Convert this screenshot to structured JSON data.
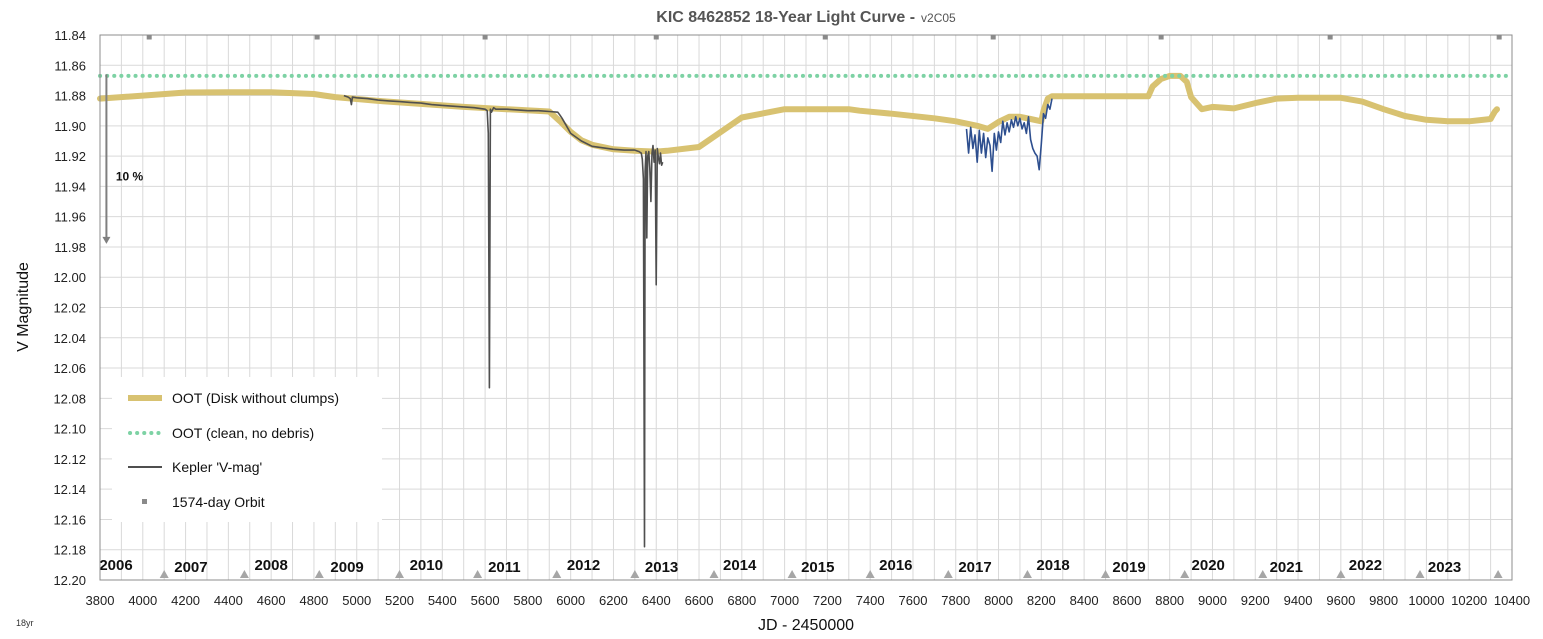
{
  "chart_data": {
    "type": "line",
    "title": "KIC 8462852 18-Year Light Curve -",
    "subtitle": "v2C05",
    "xlabel": "JD - 2450000",
    "ylabel": "V Magnitude",
    "corner_label": "18yr",
    "xlim": [
      3800,
      10400
    ],
    "ylim": [
      11.84,
      12.2
    ],
    "y_inverted": true,
    "grid": true,
    "legend_position": "bottom-left",
    "x_ticks": [
      3800,
      4000,
      4200,
      4400,
      4600,
      4800,
      5000,
      5200,
      5400,
      5600,
      5800,
      6000,
      6200,
      6400,
      6600,
      6800,
      7000,
      7200,
      7400,
      7600,
      7800,
      8000,
      8200,
      8400,
      8600,
      8800,
      9000,
      9200,
      9400,
      9600,
      9800,
      10000,
      10200,
      10400
    ],
    "y_ticks": [
      11.84,
      11.86,
      11.88,
      11.9,
      11.92,
      11.94,
      11.96,
      11.98,
      12.0,
      12.02,
      12.04,
      12.06,
      12.08,
      12.1,
      12.12,
      12.14,
      12.16,
      12.18,
      12.2
    ],
    "year_labels": [
      {
        "label": "2006",
        "x": 3875
      },
      {
        "label": "2007",
        "x": 4225
      },
      {
        "label": "2008",
        "x": 4600
      },
      {
        "label": "2009",
        "x": 4955
      },
      {
        "label": "2010",
        "x": 5325
      },
      {
        "label": "2011",
        "x": 5690
      },
      {
        "label": "2012",
        "x": 6060
      },
      {
        "label": "2013",
        "x": 6425
      },
      {
        "label": "2014",
        "x": 6790
      },
      {
        "label": "2015",
        "x": 7155
      },
      {
        "label": "2016",
        "x": 7520
      },
      {
        "label": "2017",
        "x": 7890
      },
      {
        "label": "2018",
        "x": 8255
      },
      {
        "label": "2019",
        "x": 8610
      },
      {
        "label": "2020",
        "x": 8980
      },
      {
        "label": "2021",
        "x": 9345
      },
      {
        "label": "2022",
        "x": 9715
      },
      {
        "label": "2023",
        "x": 10085
      }
    ],
    "annotation": {
      "text": "10 %",
      "x": 3860,
      "y": 11.936
    },
    "arrow": {
      "x": 3830,
      "y_from": 11.866,
      "y_to": 11.978
    },
    "series": [
      {
        "name": "OOT (Disk without clumps)",
        "color": "#d8c271",
        "style": "thick-line",
        "x": [
          3800,
          4000,
          4200,
          4400,
          4600,
          4800,
          4850,
          4900,
          5100,
          5300,
          5500,
          5700,
          5900,
          5950,
          6000,
          6050,
          6100,
          6200,
          6300,
          6400,
          6450,
          6600,
          6800,
          7000,
          7050,
          7300,
          7350,
          7500,
          7700,
          7800,
          7900,
          7950,
          8000,
          8050,
          8100,
          8150,
          8200,
          8210,
          8230,
          8250,
          8300,
          8400,
          8500,
          8650,
          8700,
          8720,
          8760,
          8800,
          8850,
          8880,
          8900,
          8950,
          9000,
          9100,
          9200,
          9300,
          9400,
          9500,
          9600,
          9700,
          9800,
          9900,
          10000,
          10100,
          10200,
          10300,
          10310,
          10320,
          10330
        ],
        "y": [
          11.882,
          11.88,
          11.878,
          11.8778,
          11.8778,
          11.879,
          11.88,
          11.881,
          11.8835,
          11.8855,
          11.8875,
          11.889,
          11.8905,
          11.897,
          11.904,
          11.9095,
          11.9125,
          11.9155,
          11.9165,
          11.917,
          11.9165,
          11.914,
          11.8945,
          11.889,
          11.889,
          11.889,
          11.89,
          11.892,
          11.895,
          11.897,
          11.9,
          11.902,
          11.8975,
          11.894,
          11.894,
          11.8955,
          11.897,
          11.89,
          11.882,
          11.8805,
          11.8805,
          11.8805,
          11.8805,
          11.8805,
          11.8805,
          11.874,
          11.869,
          11.867,
          11.867,
          11.871,
          11.881,
          11.889,
          11.8875,
          11.8885,
          11.885,
          11.882,
          11.8815,
          11.8815,
          11.8815,
          11.884,
          11.889,
          11.8935,
          11.896,
          11.897,
          11.897,
          11.8955,
          11.893,
          11.8905,
          11.889
        ]
      },
      {
        "name": "OOT (clean, no debris)",
        "color": "#7dd2a4",
        "style": "dotted-line",
        "x": [
          3800,
          10400
        ],
        "y": [
          11.867,
          11.867
        ]
      },
      {
        "name": "Kepler 'V-mag'",
        "color": "#4f4f4f",
        "style": "thin-line",
        "x": [
          4940,
          4960,
          4970,
          4975,
          4980,
          5000,
          5050,
          5100,
          5150,
          5200,
          5250,
          5300,
          5350,
          5400,
          5450,
          5500,
          5550,
          5600,
          5610,
          5615,
          5620,
          5625,
          5630,
          5640,
          5650,
          5700,
          5750,
          5800,
          5850,
          5900,
          5940,
          5950,
          5960,
          5980,
          6000,
          6050,
          6100,
          6150,
          6200,
          6250,
          6300,
          6320,
          6330,
          6335,
          6340,
          6345,
          6348,
          6352,
          6356,
          6360,
          6365,
          6370,
          6375,
          6380,
          6385,
          6390,
          6395,
          6400,
          6405,
          6410,
          6415,
          6420,
          6425,
          6430
        ],
        "y": [
          11.88,
          11.881,
          11.882,
          11.886,
          11.881,
          11.8815,
          11.882,
          11.883,
          11.8835,
          11.884,
          11.8845,
          11.885,
          11.886,
          11.8865,
          11.887,
          11.8875,
          11.888,
          11.889,
          11.89,
          11.905,
          12.073,
          11.889,
          11.891,
          11.888,
          11.889,
          11.889,
          11.8895,
          11.89,
          11.89,
          11.8905,
          11.891,
          11.893,
          11.895,
          11.9,
          11.905,
          11.91,
          11.9135,
          11.9145,
          11.9155,
          11.916,
          11.916,
          11.917,
          11.918,
          11.922,
          11.935,
          12.178,
          11.93,
          11.917,
          11.974,
          11.92,
          11.917,
          11.928,
          11.95,
          11.918,
          11.913,
          11.924,
          11.916,
          12.005,
          11.915,
          11.921,
          11.925,
          11.918,
          11.926,
          11.924
        ]
      },
      {
        "name": "",
        "color": "#2e4f8f",
        "style": "thin-line",
        "x": [
          7850,
          7860,
          7870,
          7880,
          7890,
          7900,
          7910,
          7920,
          7930,
          7940,
          7950,
          7960,
          7970,
          7980,
          7990,
          8000,
          8010,
          8020,
          8030,
          8040,
          8050,
          8060,
          8070,
          8080,
          8090,
          8100,
          8110,
          8120,
          8130,
          8140,
          8150,
          8160,
          8170,
          8180,
          8190,
          8200,
          8210,
          8220,
          8230,
          8240,
          8250
        ],
        "y": [
          11.902,
          11.918,
          11.901,
          11.915,
          11.906,
          11.924,
          11.903,
          11.918,
          11.905,
          11.921,
          11.908,
          11.913,
          11.93,
          11.905,
          11.916,
          11.904,
          11.911,
          11.897,
          11.906,
          11.898,
          11.904,
          11.896,
          11.901,
          11.894,
          11.9,
          11.895,
          11.902,
          11.898,
          11.905,
          11.894,
          11.909,
          11.915,
          11.918,
          11.92,
          11.929,
          11.912,
          11.892,
          11.895,
          11.886,
          11.889,
          11.882
        ]
      }
    ],
    "orbit_markers": {
      "name": "1574-day Orbit",
      "color": "#8a8a8a",
      "top_squares_x": [
        4030,
        4815,
        5600,
        6400,
        7190,
        7975,
        8760,
        9550,
        10340
      ],
      "bottom_triangles_x": [
        4100,
        4475,
        4825,
        5200,
        5565,
        5935,
        6300,
        6670,
        7035,
        7400,
        7765,
        8135,
        8500,
        8870,
        9235,
        9600,
        9970,
        10335
      ]
    }
  }
}
